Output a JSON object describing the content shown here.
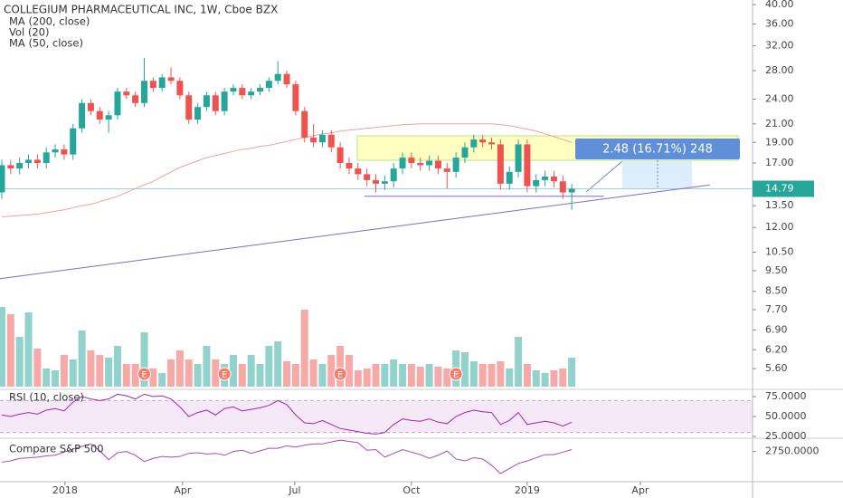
{
  "chart_data": {
    "type": "candlestick",
    "title": "COLLEGIUM PHARMACEUTICAL INC, 1W, Cboe BZX",
    "indicators": [
      "MA (200, close)",
      "Vol (20)",
      "MA (50, close)"
    ],
    "log_scale": true,
    "up_color": "#26a69a",
    "down_color": "#ef5350",
    "xlim": [
      -0.2,
      84.3
    ],
    "xticks": [
      {
        "value": 7.1,
        "label": "2018"
      },
      {
        "value": 20.3,
        "label": "Apr"
      },
      {
        "value": 32.9,
        "label": "Jul"
      },
      {
        "value": 46,
        "label": "Oct"
      },
      {
        "value": 59,
        "label": "2019"
      },
      {
        "value": 71.7,
        "label": "Apr"
      }
    ],
    "ylim": [
      5.08,
      41.0
    ],
    "yticks": [
      {
        "value": 40,
        "label": "40.00"
      },
      {
        "value": 36,
        "label": "36.00"
      },
      {
        "value": 32,
        "label": "32.00"
      },
      {
        "value": 28,
        "label": "28.00"
      },
      {
        "value": 24,
        "label": "24.00"
      },
      {
        "value": 21,
        "label": "21.00"
      },
      {
        "value": 19,
        "label": "19.00"
      },
      {
        "value": 17,
        "label": "17.00"
      },
      {
        "value": 13.5,
        "label": "13.50"
      },
      {
        "value": 12,
        "label": "12.00"
      },
      {
        "value": 10.5,
        "label": "10.50"
      },
      {
        "value": 9.5,
        "label": "9.50"
      },
      {
        "value": 8.5,
        "label": "8.50"
      },
      {
        "value": 7.7,
        "label": "7.70"
      },
      {
        "value": 6.9,
        "label": "6.90"
      },
      {
        "value": 6.2,
        "label": "6.20"
      },
      {
        "value": 5.6,
        "label": "5.60"
      }
    ],
    "last_price": 14.79,
    "open": [
      14.5,
      16.8,
      16.5,
      17.0,
      17.3,
      17.0,
      18.0,
      18.3,
      17.8,
      20.5,
      23.5,
      22.5,
      21.5,
      22.0,
      25.0,
      24.5,
      23.5,
      26.5,
      25.5,
      27.0,
      26.5,
      24.5,
      21.5,
      23.0,
      24.5,
      22.5,
      25.0,
      25.5,
      24.5,
      25.0,
      25.5,
      26.5,
      27.5,
      26.0,
      22.5,
      19.5,
      19.0,
      19.8,
      18.5,
      17.0,
      16.5,
      16.0,
      15.5,
      15.2,
      15.4,
      16.5,
      17.5,
      17.0,
      16.8,
      17.2,
      16.5,
      16.2,
      17.5,
      18.5,
      19.3,
      19.0,
      18.8,
      15.2,
      16.2,
      18.8,
      15.0,
      15.5,
      15.8,
      15.4,
      14.5
    ],
    "high": [
      17.3,
      17.3,
      17.5,
      17.8,
      17.8,
      18.5,
      18.8,
      18.8,
      21.0,
      24.0,
      24.0,
      23.0,
      22.5,
      25.5,
      25.5,
      25.0,
      30.0,
      27.0,
      27.5,
      28.5,
      27.0,
      25.0,
      23.5,
      25.0,
      25.0,
      25.5,
      26.0,
      26.0,
      25.5,
      26.0,
      27.0,
      29.5,
      28.0,
      26.5,
      23.0,
      21.0,
      20.3,
      20.3,
      19.0,
      17.5,
      17.0,
      16.5,
      16.0,
      15.9,
      17.0,
      18.0,
      18.0,
      17.5,
      17.7,
      17.7,
      17.0,
      18.0,
      19.0,
      19.8,
      19.8,
      19.5,
      19.3,
      16.7,
      19.3,
      19.3,
      16.0,
      16.3,
      16.3,
      15.9,
      15.2
    ],
    "low": [
      14.0,
      16.0,
      16.0,
      16.5,
      16.5,
      16.5,
      17.5,
      17.3,
      17.3,
      20.0,
      22.0,
      21.0,
      20.0,
      21.5,
      24.0,
      23.0,
      23.0,
      25.0,
      25.0,
      26.0,
      24.0,
      21.0,
      21.0,
      22.5,
      22.0,
      22.0,
      24.5,
      24.0,
      24.0,
      24.5,
      25.0,
      26.0,
      25.5,
      22.0,
      19.0,
      18.5,
      18.5,
      18.0,
      16.5,
      16.0,
      15.5,
      15.0,
      14.5,
      14.7,
      14.9,
      16.0,
      16.5,
      16.3,
      16.3,
      16.0,
      14.8,
      15.7,
      17.0,
      18.0,
      18.5,
      18.3,
      14.7,
      14.7,
      15.7,
      14.5,
      14.5,
      15.0,
      14.9,
      14.0,
      13.2
    ],
    "close": [
      16.8,
      16.5,
      17.0,
      17.3,
      17.0,
      18.0,
      18.3,
      17.8,
      20.5,
      23.5,
      22.5,
      21.5,
      22.0,
      25.0,
      24.5,
      23.5,
      26.5,
      25.5,
      27.0,
      26.5,
      24.5,
      21.5,
      23.0,
      24.5,
      22.5,
      25.0,
      25.5,
      24.5,
      25.0,
      25.5,
      26.5,
      27.5,
      26.0,
      22.5,
      19.5,
      19.0,
      19.8,
      18.5,
      17.0,
      16.5,
      16.0,
      15.5,
      15.2,
      15.4,
      16.5,
      17.5,
      17.0,
      16.8,
      17.2,
      16.5,
      16.2,
      17.5,
      18.5,
      19.3,
      19.0,
      18.8,
      15.2,
      16.2,
      18.8,
      15.0,
      15.5,
      15.8,
      15.4,
      14.5,
      14.79
    ],
    "ma": {
      "color": "#f4a39c",
      "values": [
        12.7,
        12.75,
        12.8,
        12.85,
        12.9,
        13.0,
        13.1,
        13.2,
        13.35,
        13.5,
        13.6,
        13.8,
        14.0,
        14.2,
        14.5,
        14.8,
        15.1,
        15.4,
        15.8,
        16.2,
        16.6,
        16.9,
        17.2,
        17.5,
        17.7,
        17.9,
        18.1,
        18.3,
        18.4,
        18.6,
        18.7,
        18.9,
        19.1,
        19.3,
        19.5,
        19.7,
        19.9,
        20.0,
        20.2,
        20.3,
        20.4,
        20.5,
        20.6,
        20.7,
        20.8,
        20.9,
        20.95,
        21.0,
        21.0,
        21.0,
        21.0,
        21.0,
        21.0,
        21.0,
        21.0,
        21.0,
        20.9,
        20.8,
        20.6,
        20.4,
        20.2,
        19.9,
        19.6,
        19.3,
        19.0
      ]
    },
    "trendline": {
      "color": "#7e6bc9",
      "x": [
        -0.2,
        79.5
      ],
      "y": [
        9.1,
        15.1
      ]
    },
    "support": {
      "x": [
        40.7,
        67.6
      ],
      "y": [
        14.2,
        14.2
      ]
    },
    "position_label": "2.48 (16.71%) 248",
    "volume": {
      "values": [
        88,
        80,
        55,
        82,
        42,
        20,
        18,
        35,
        30,
        62,
        40,
        35,
        32,
        45,
        25,
        25,
        60,
        20,
        15,
        30,
        40,
        30,
        25,
        45,
        30,
        25,
        35,
        25,
        35,
        25,
        45,
        50,
        28,
        25,
        85,
        30,
        25,
        35,
        45,
        35,
        18,
        20,
        25,
        25,
        30,
        25,
        25,
        22,
        25,
        22,
        20,
        40,
        38,
        28,
        25,
        25,
        28,
        20,
        55,
        25,
        18,
        15,
        18,
        20,
        32
      ]
    },
    "earnings": {
      "x": [
        16,
        25,
        38,
        51
      ],
      "label": "E"
    },
    "rsi": {
      "title": "RSI (10, close)",
      "color": "#9c27b0",
      "ylim": [
        25,
        84.1
      ],
      "yticks": [
        {
          "value": 75,
          "label": "75.0000"
        },
        {
          "value": 50,
          "label": "50.0000"
        },
        {
          "value": 25,
          "label": "25.0000"
        }
      ],
      "band": [
        30,
        70
      ],
      "values": [
        52,
        50,
        53,
        55,
        53,
        58,
        60,
        57,
        68,
        75,
        72,
        70,
        72,
        78,
        76,
        72,
        78,
        75,
        76,
        72,
        62,
        50,
        55,
        58,
        52,
        60,
        62,
        57,
        59,
        61,
        64,
        70,
        65,
        52,
        42,
        41,
        45,
        40,
        35,
        33,
        31,
        29,
        28,
        30,
        40,
        47,
        45,
        44,
        47,
        43,
        41,
        50,
        55,
        58,
        56,
        55,
        40,
        45,
        55,
        40,
        42,
        44,
        42,
        38,
        43
      ]
    },
    "compare": {
      "title": "Compare S&P 500",
      "color": "#ab47bc",
      "ylim": [
        2270,
        2960
      ],
      "yticks": [
        {
          "value": 2750,
          "label": "2750.0000"
        }
      ],
      "values": [
        2580,
        2600,
        2640,
        2650,
        2660,
        2680,
        2690,
        2740,
        2790,
        2830,
        2870,
        2760,
        2620,
        2730,
        2750,
        2690,
        2590,
        2640,
        2670,
        2660,
        2670,
        2720,
        2730,
        2710,
        2720,
        2690,
        2750,
        2770,
        2720,
        2760,
        2800,
        2800,
        2840,
        2820,
        2850,
        2870,
        2870,
        2900,
        2930,
        2910,
        2890,
        2770,
        2780,
        2660,
        2720,
        2780,
        2740,
        2700,
        2640,
        2690,
        2760,
        2630,
        2600,
        2650,
        2630,
        2530,
        2400,
        2480,
        2560,
        2600,
        2650,
        2700,
        2700,
        2740,
        2780
      ]
    }
  }
}
